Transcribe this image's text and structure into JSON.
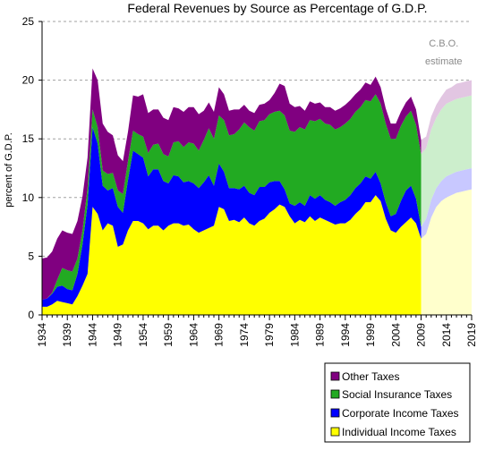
{
  "chart_data": {
    "type": "area",
    "stacked": true,
    "title": "Federal Revenues by Source as Percentage of G.D.P.",
    "xlabel": "",
    "ylabel": "percent of G.D.P.",
    "xlim": [
      1934,
      2019
    ],
    "ylim": [
      0,
      25
    ],
    "yticks": [
      0,
      5,
      10,
      15,
      20,
      25
    ],
    "xticks": [
      1934,
      1939,
      1944,
      1949,
      1954,
      1959,
      1964,
      1969,
      1974,
      1979,
      1984,
      1989,
      1994,
      1999,
      2004,
      2009,
      2014,
      2019
    ],
    "grid": "horizontal dashed",
    "legend_position": "bottom-right",
    "annotation": "C.B.O. estimate",
    "estimate_start_year": 2009,
    "colors": {
      "Individual Income Taxes": "#ffff00",
      "Corporate Income Taxes": "#0000ff",
      "Social Insurance Taxes": "#22aa22",
      "Other Taxes": "#800080"
    },
    "estimate_colors": {
      "Individual Income Taxes": "#ffffcc",
      "Corporate Income Taxes": "#c8c8ff",
      "Social Insurance Taxes": "#cceecc",
      "Other Taxes": "#e2c6e2"
    },
    "series_order": [
      "Individual Income Taxes",
      "Corporate Income Taxes",
      "Social Insurance Taxes",
      "Other Taxes"
    ],
    "legend_order": [
      "Other Taxes",
      "Social Insurance Taxes",
      "Corporate Income Taxes",
      "Individual Income Taxes"
    ],
    "x": [
      1934,
      1935,
      1936,
      1937,
      1938,
      1939,
      1940,
      1941,
      1942,
      1943,
      1944,
      1945,
      1946,
      1947,
      1948,
      1949,
      1950,
      1951,
      1952,
      1953,
      1954,
      1955,
      1956,
      1957,
      1958,
      1959,
      1960,
      1961,
      1962,
      1963,
      1964,
      1965,
      1966,
      1967,
      1968,
      1969,
      1970,
      1971,
      1972,
      1973,
      1974,
      1975,
      1976,
      1977,
      1978,
      1979,
      1980,
      1981,
      1982,
      1983,
      1984,
      1985,
      1986,
      1987,
      1988,
      1989,
      1990,
      1991,
      1992,
      1993,
      1994,
      1995,
      1996,
      1997,
      1998,
      1999,
      2000,
      2001,
      2002,
      2003,
      2004,
      2005,
      2006,
      2007,
      2008,
      2009,
      2010,
      2011,
      2012,
      2013,
      2014,
      2015,
      2016,
      2017,
      2018,
      2019
    ],
    "series": [
      {
        "name": "Individual Income Taxes",
        "values": [
          0.7,
          0.7,
          0.9,
          1.2,
          1.1,
          1.0,
          0.9,
          1.6,
          2.5,
          3.5,
          9.2,
          8.6,
          7.2,
          7.8,
          7.6,
          5.8,
          6.0,
          7.2,
          8.0,
          8.0,
          7.8,
          7.3,
          7.6,
          7.6,
          7.2,
          7.6,
          7.8,
          7.8,
          7.6,
          7.7,
          7.3,
          7.0,
          7.2,
          7.4,
          7.6,
          9.2,
          9.0,
          8.0,
          8.1,
          7.9,
          8.3,
          7.8,
          7.6,
          8.0,
          8.2,
          8.7,
          9.0,
          9.4,
          9.2,
          8.4,
          7.8,
          8.1,
          7.9,
          8.4,
          8.0,
          8.3,
          8.1,
          7.9,
          7.7,
          7.8,
          7.8,
          8.1,
          8.6,
          9.0,
          9.6,
          9.6,
          10.2,
          9.7,
          8.2,
          7.2,
          7.0,
          7.5,
          7.9,
          8.3,
          7.8,
          6.5,
          6.9,
          8.3,
          9.2,
          9.7,
          10.0,
          10.2,
          10.4,
          10.5,
          10.6,
          10.7
        ]
      },
      {
        "name": "Corporate Income Taxes",
        "values": [
          0.6,
          0.7,
          0.9,
          1.2,
          1.4,
          1.2,
          1.2,
          1.9,
          3.5,
          5.9,
          6.8,
          6.0,
          3.8,
          2.8,
          3.2,
          3.4,
          2.7,
          4.3,
          6.0,
          5.7,
          5.6,
          4.5,
          4.8,
          4.8,
          4.2,
          3.6,
          4.1,
          4.0,
          3.7,
          3.7,
          3.9,
          3.8,
          4.1,
          4.5,
          3.4,
          3.7,
          3.2,
          2.8,
          2.7,
          2.8,
          2.7,
          2.6,
          2.6,
          2.9,
          2.7,
          2.6,
          2.4,
          2.0,
          1.5,
          1.1,
          1.5,
          1.5,
          1.4,
          1.8,
          1.9,
          1.9,
          1.7,
          1.7,
          1.6,
          1.8,
          2.0,
          2.1,
          2.2,
          2.2,
          2.2,
          2.0,
          2.0,
          1.5,
          1.4,
          1.2,
          1.6,
          2.2,
          2.7,
          2.7,
          2.1,
          1.0,
          1.3,
          1.5,
          1.6,
          1.7,
          1.8,
          1.8,
          1.8,
          1.8,
          1.8,
          1.8
        ]
      },
      {
        "name": "Social Insurance Taxes",
        "values": [
          0.0,
          0.0,
          0.1,
          0.6,
          1.5,
          1.6,
          1.6,
          1.3,
          1.2,
          1.4,
          1.5,
          1.4,
          1.3,
          1.4,
          1.3,
          1.4,
          1.6,
          1.6,
          1.7,
          1.7,
          1.8,
          2.0,
          2.1,
          2.2,
          2.3,
          2.3,
          2.8,
          3.0,
          3.0,
          3.3,
          3.4,
          3.2,
          3.6,
          4.0,
          4.0,
          4.1,
          4.4,
          4.5,
          4.6,
          5.1,
          5.4,
          5.6,
          5.5,
          5.6,
          5.7,
          5.8,
          5.9,
          6.0,
          6.3,
          6.2,
          6.3,
          6.4,
          6.5,
          6.4,
          6.6,
          6.5,
          6.5,
          6.6,
          6.5,
          6.4,
          6.5,
          6.5,
          6.5,
          6.5,
          6.5,
          6.6,
          6.6,
          6.8,
          6.7,
          6.6,
          6.4,
          6.4,
          6.3,
          6.4,
          6.3,
          6.2,
          6.0,
          6.0,
          6.0,
          6.1,
          6.2,
          6.2,
          6.2,
          6.2,
          6.2,
          6.2
        ]
      },
      {
        "name": "Other Taxes",
        "values": [
          3.5,
          3.5,
          3.5,
          3.5,
          3.2,
          3.2,
          3.2,
          3.2,
          2.9,
          2.6,
          3.5,
          4.0,
          4.0,
          3.6,
          3.2,
          3.0,
          2.8,
          2.5,
          3.0,
          3.2,
          3.6,
          3.4,
          3.0,
          2.9,
          3.1,
          3.1,
          3.0,
          2.8,
          3.0,
          3.0,
          3.1,
          3.1,
          2.5,
          2.2,
          2.3,
          2.4,
          2.2,
          2.1,
          2.1,
          1.7,
          1.5,
          1.4,
          1.5,
          1.4,
          1.4,
          1.2,
          1.6,
          2.3,
          2.5,
          2.3,
          2.1,
          1.8,
          1.6,
          1.6,
          1.5,
          1.4,
          1.4,
          1.5,
          1.6,
          1.6,
          1.6,
          1.6,
          1.5,
          1.5,
          1.5,
          1.4,
          1.5,
          1.4,
          1.3,
          1.3,
          1.3,
          1.2,
          1.2,
          1.2,
          1.3,
          1.2,
          1.0,
          1.1,
          1.1,
          1.1,
          1.2,
          1.2,
          1.3,
          1.3,
          1.3,
          1.3
        ]
      }
    ]
  }
}
